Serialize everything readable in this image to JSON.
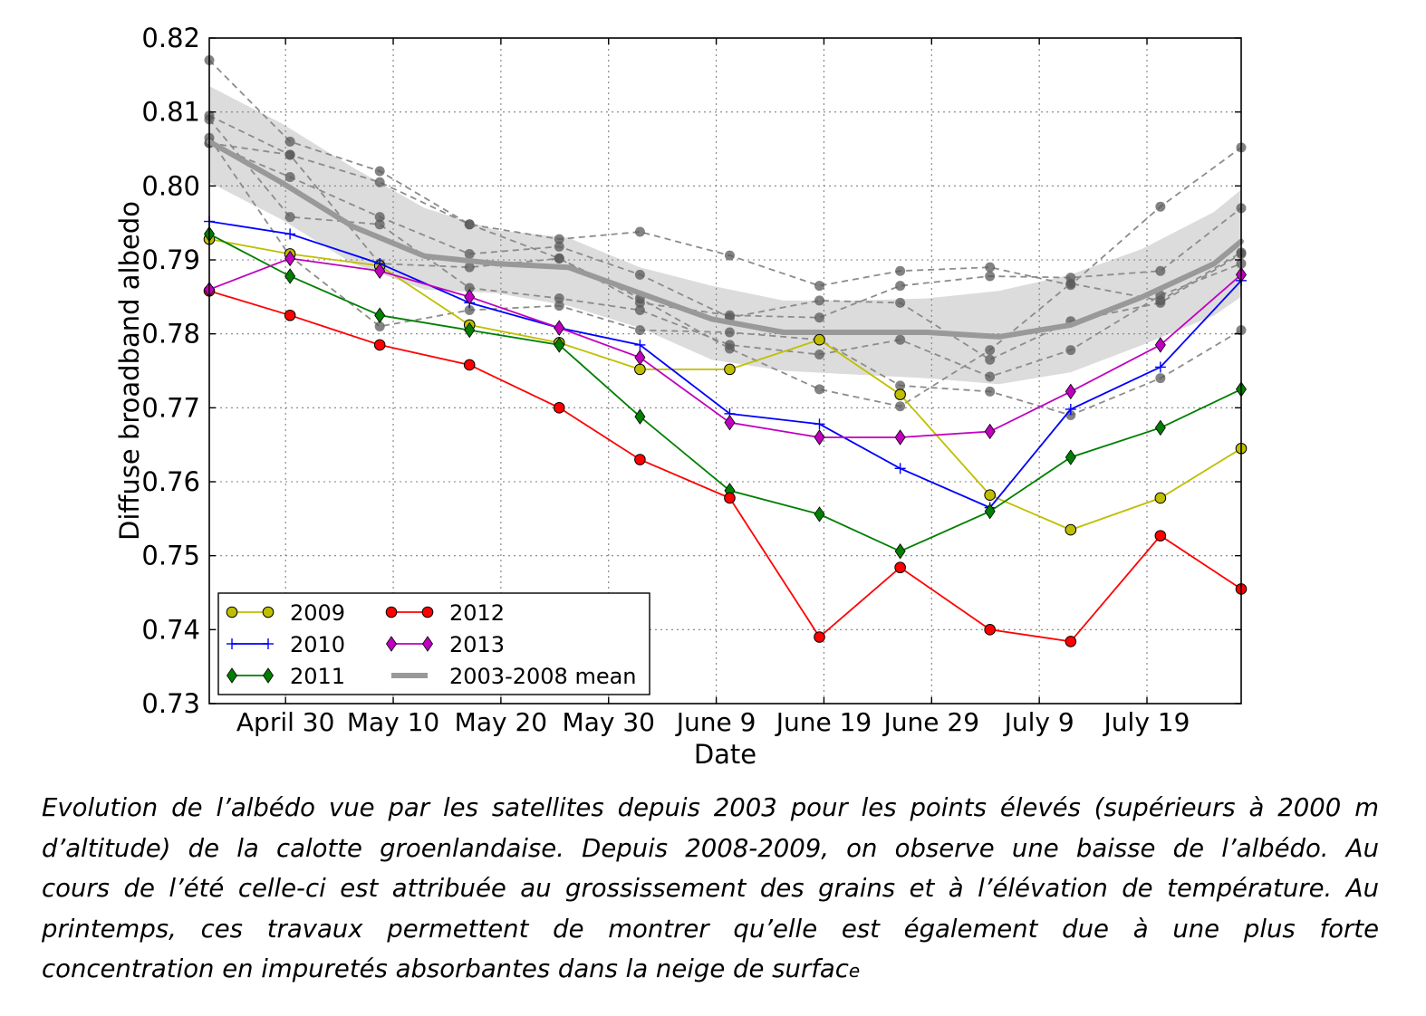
{
  "chart_data": {
    "type": "line",
    "xlabel": "Date",
    "ylabel": "Diffuse broadband albedo",
    "ylim": [
      0.73,
      0.82
    ],
    "xlim": [
      0,
      115
    ],
    "yticks": [
      "0.73",
      "0.74",
      "0.75",
      "0.76",
      "0.77",
      "0.78",
      "0.79",
      "0.80",
      "0.81",
      "0.82"
    ],
    "xticks": [
      {
        "x": 8.5,
        "label": "April 30"
      },
      {
        "x": 20.5,
        "label": "May 10"
      },
      {
        "x": 32.5,
        "label": "May 20"
      },
      {
        "x": 44.5,
        "label": "May 30"
      },
      {
        "x": 56.5,
        "label": "June 9"
      },
      {
        "x": 68.5,
        "label": "June 19"
      },
      {
        "x": 80.5,
        "label": "June 29"
      },
      {
        "x": 92.5,
        "label": "July 9"
      },
      {
        "x": 104.5,
        "label": "July 19"
      }
    ],
    "grid": true,
    "legend_position": "bottom-left",
    "mean": {
      "name": "2003-2008 mean",
      "color": "#999999",
      "x": [
        0,
        8,
        16,
        24,
        32,
        40,
        48,
        56,
        64,
        72,
        80,
        88,
        96,
        104,
        112,
        115
      ],
      "y": [
        0.806,
        0.8005,
        0.7945,
        0.7905,
        0.7895,
        0.789,
        0.7855,
        0.782,
        0.7802,
        0.7802,
        0.7802,
        0.7796,
        0.7812,
        0.785,
        0.7895,
        0.7925
      ],
      "band_upper": [
        0.8135,
        0.8085,
        0.8025,
        0.797,
        0.794,
        0.793,
        0.789,
        0.7865,
        0.7845,
        0.7845,
        0.7848,
        0.7858,
        0.788,
        0.7915,
        0.7965,
        0.7995
      ],
      "band_lower": [
        0.8005,
        0.7955,
        0.7895,
        0.786,
        0.7855,
        0.7838,
        0.7808,
        0.7765,
        0.775,
        0.7745,
        0.774,
        0.7732,
        0.7748,
        0.7785,
        0.7825,
        0.785
      ]
    },
    "background_series": [
      {
        "x": [
          0,
          9,
          19,
          29,
          39,
          48,
          58,
          68,
          77,
          87,
          96,
          106,
          115
        ],
        "y": [
          0.817,
          0.806,
          0.802,
          0.7948,
          0.7928,
          0.7938,
          0.7906,
          0.7865,
          0.7885,
          0.789,
          0.7866,
          0.7972,
          0.8052
        ]
      },
      {
        "x": [
          0,
          9,
          19,
          29,
          39,
          48,
          58,
          68,
          77,
          87,
          96,
          106,
          115
        ],
        "y": [
          0.8095,
          0.8042,
          0.8005,
          0.7948,
          0.7902,
          0.7842,
          0.7825,
          0.7822,
          0.7865,
          0.7878,
          0.7876,
          0.7885,
          0.797
        ]
      },
      {
        "x": [
          0,
          9,
          19,
          29,
          39,
          48,
          58,
          68,
          77,
          87,
          96,
          106,
          115
        ],
        "y": [
          0.8058,
          0.8012,
          0.7958,
          0.7908,
          0.7918,
          0.788,
          0.7822,
          0.7845,
          0.7842,
          0.7765,
          0.7817,
          0.7842,
          0.7908
        ]
      },
      {
        "x": [
          0,
          9,
          19,
          29,
          39,
          48,
          58,
          68,
          77,
          87,
          96,
          106,
          115
        ],
        "y": [
          0.809,
          0.7958,
          0.7948,
          0.7862,
          0.7848,
          0.7832,
          0.7785,
          0.7772,
          0.7792,
          0.7742,
          0.7778,
          0.7852,
          0.7895
        ]
      },
      {
        "x": [
          0,
          9,
          19,
          29,
          39,
          48,
          58,
          68,
          77,
          87,
          96,
          106,
          115
        ],
        "y": [
          0.8065,
          0.7905,
          0.781,
          0.7832,
          0.7838,
          0.7805,
          0.7802,
          0.7792,
          0.773,
          0.7722,
          0.769,
          0.774,
          0.7805
        ]
      },
      {
        "x": [
          0,
          9,
          19,
          29,
          39,
          48,
          58,
          68,
          77,
          87,
          96,
          106,
          115
        ],
        "y": [
          0.8058,
          0.8042,
          0.7895,
          0.789,
          0.7902,
          0.7848,
          0.778,
          0.7725,
          0.7702,
          0.7778,
          0.7868,
          0.7845,
          0.791
        ]
      }
    ],
    "series": [
      {
        "name": "2009",
        "color": "#bfbf00",
        "marker": "circle",
        "x": [
          0,
          9,
          19,
          29,
          39,
          48,
          58,
          68,
          77,
          87,
          96,
          106,
          115
        ],
        "y": [
          0.7928,
          0.7908,
          0.7892,
          0.7812,
          0.7788,
          0.7752,
          0.7752,
          0.7792,
          0.7718,
          0.7582,
          0.7535,
          0.7578,
          0.7645
        ]
      },
      {
        "name": "2010",
        "color": "#0000ff",
        "marker": "plus",
        "x": [
          0,
          9,
          19,
          29,
          39,
          48,
          58,
          68,
          77,
          87,
          96,
          106,
          115
        ],
        "y": [
          0.7952,
          0.7935,
          0.7895,
          0.7842,
          0.7808,
          0.7785,
          0.7692,
          0.7678,
          0.7618,
          0.7565,
          0.7698,
          0.7755,
          0.7872
        ]
      },
      {
        "name": "2011",
        "color": "#007f00",
        "marker": "diamond",
        "x": [
          0,
          9,
          19,
          29,
          39,
          48,
          58,
          68,
          77,
          87,
          96,
          106,
          115
        ],
        "y": [
          0.7935,
          0.7878,
          0.7825,
          0.7805,
          0.7785,
          0.7688,
          0.7588,
          0.7556,
          0.7506,
          0.756,
          0.7633,
          0.7673,
          0.7725
        ]
      },
      {
        "name": "2012",
        "color": "#ff0000",
        "marker": "circle",
        "x": [
          0,
          9,
          19,
          29,
          39,
          48,
          58,
          68,
          77,
          87,
          96,
          106,
          115
        ],
        "y": [
          0.7858,
          0.7825,
          0.7785,
          0.7758,
          0.77,
          0.763,
          0.7578,
          0.739,
          0.7484,
          0.74,
          0.7384,
          0.7527,
          0.7455
        ]
      },
      {
        "name": "2013",
        "color": "#bf00bf",
        "marker": "diamond",
        "x": [
          0,
          9,
          19,
          29,
          39,
          48,
          58,
          68,
          77,
          87,
          96,
          106,
          115
        ],
        "y": [
          0.786,
          0.7902,
          0.7885,
          0.785,
          0.7808,
          0.7768,
          0.768,
          0.766,
          0.766,
          0.7668,
          0.7722,
          0.7785,
          0.788
        ]
      }
    ]
  },
  "caption": {
    "lines": [
      "Evolution de l’albédo vue par les satellites depuis 2003  pour les points élevés (supérieurs à 2000 m",
      "d’altitude)  de la calotte groenlandaise.  Depuis 2008-2009, on observe une baisse de l’albédo. Au",
      "cours de l’été celle-ci est attribuée au grossissement des grains et à l’élévation de température. Au",
      "printemps,  ces  travaux  permettent  de  montrer  qu’elle  est  également  due  à  une  plus  forte",
      "concentration en impuretés absorbantes dans la neige de surfac"
    ],
    "last_line_tail": "e"
  }
}
